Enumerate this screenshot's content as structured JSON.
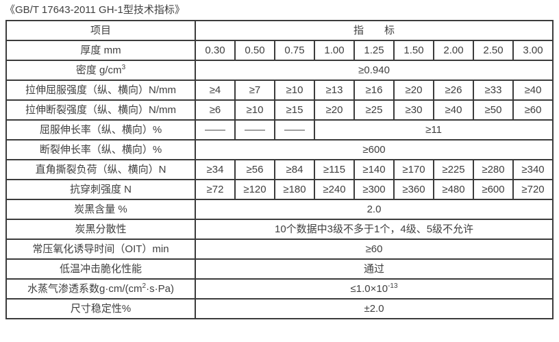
{
  "title": "《GB/T 17643-2011 GH-1型技术指标》",
  "colors": {
    "text": "#3f3f3f",
    "border": "#3b3b3b",
    "background": "#ffffff"
  },
  "table": {
    "columns": 10,
    "rows": [
      {
        "name": "header",
        "cells": [
          {
            "t": "项目"
          },
          {
            "t": "指　　标",
            "span": 9
          }
        ]
      },
      {
        "name": "thickness",
        "cells": [
          {
            "t": "厚度 mm"
          },
          {
            "t": "0.30"
          },
          {
            "t": "0.50"
          },
          {
            "t": "0.75"
          },
          {
            "t": "1.00"
          },
          {
            "t": "1.25"
          },
          {
            "t": "1.50"
          },
          {
            "t": "2.00"
          },
          {
            "t": "2.50"
          },
          {
            "t": "3.00"
          }
        ]
      },
      {
        "name": "density",
        "cells": [
          {
            "t": "密度 g/cm",
            "sup": "3"
          },
          {
            "t": "≥0.940",
            "span": 9
          }
        ]
      },
      {
        "name": "tensile-yield-strength",
        "cells": [
          {
            "t": "拉伸屈服强度（纵、横向）N/mm"
          },
          {
            "t": "≥4"
          },
          {
            "t": "≥7"
          },
          {
            "t": "≥10"
          },
          {
            "t": "≥13"
          },
          {
            "t": "≥16"
          },
          {
            "t": "≥20"
          },
          {
            "t": "≥26"
          },
          {
            "t": "≥33"
          },
          {
            "t": "≥40"
          }
        ]
      },
      {
        "name": "tensile-break-strength",
        "cells": [
          {
            "t": "拉伸断裂强度（纵、横向）N/mm"
          },
          {
            "t": "≥6"
          },
          {
            "t": "≥10"
          },
          {
            "t": "≥15"
          },
          {
            "t": "≥20"
          },
          {
            "t": "≥25"
          },
          {
            "t": "≥30"
          },
          {
            "t": "≥40"
          },
          {
            "t": "≥50"
          },
          {
            "t": "≥60"
          }
        ]
      },
      {
        "name": "yield-elongation",
        "cells": [
          {
            "t": "屈服伸长率（纵、横向）%"
          },
          {
            "t": "——"
          },
          {
            "t": "——"
          },
          {
            "t": "——"
          },
          {
            "t": "≥11",
            "span": 6
          }
        ]
      },
      {
        "name": "break-elongation",
        "cells": [
          {
            "t": "断裂伸长率（纵、横向）%"
          },
          {
            "t": "≥600",
            "span": 9
          }
        ]
      },
      {
        "name": "right-angle-tear-load",
        "cells": [
          {
            "t": "直角撕裂负荷（纵、横向）N"
          },
          {
            "t": "≥34"
          },
          {
            "t": "≥56"
          },
          {
            "t": "≥84"
          },
          {
            "t": "≥115"
          },
          {
            "t": "≥140"
          },
          {
            "t": "≥170"
          },
          {
            "t": "≥225"
          },
          {
            "t": "≥280"
          },
          {
            "t": "≥340"
          }
        ]
      },
      {
        "name": "puncture-resistance",
        "cells": [
          {
            "t": "抗穿刺强度 N"
          },
          {
            "t": "≥72"
          },
          {
            "t": "≥120"
          },
          {
            "t": "≥180"
          },
          {
            "t": "≥240"
          },
          {
            "t": "≥300"
          },
          {
            "t": "≥360"
          },
          {
            "t": "≥480"
          },
          {
            "t": "≥600"
          },
          {
            "t": "≥720"
          }
        ]
      },
      {
        "name": "carbon-black-content",
        "cells": [
          {
            "t": "炭黑含量 %"
          },
          {
            "t": "2.0",
            "span": 9
          }
        ]
      },
      {
        "name": "carbon-black-dispersion",
        "cells": [
          {
            "t": "炭黑分散性"
          },
          {
            "t": "10个数据中3级不多于1个，4级、5级不允许",
            "span": 9
          }
        ]
      },
      {
        "name": "oit-time",
        "cells": [
          {
            "t": "常压氧化诱导时间（OIT）min"
          },
          {
            "t": "≥60",
            "span": 9
          }
        ]
      },
      {
        "name": "low-temp-impact-brittleness",
        "cells": [
          {
            "t": "低温冲击脆化性能"
          },
          {
            "t": "通过",
            "span": 9
          }
        ]
      },
      {
        "name": "water-vapor-permeability",
        "cells": [
          {
            "t": "水蒸气渗透系数g·cm/(cm",
            "sup": "2",
            "tail": "·s·Pa)"
          },
          {
            "t": "≤1.0×10",
            "sup": "-13",
            "span": 9
          }
        ]
      },
      {
        "name": "dimensional-stability",
        "cells": [
          {
            "t": "尺寸稳定性%"
          },
          {
            "t": "±2.0",
            "span": 9
          }
        ]
      }
    ]
  }
}
